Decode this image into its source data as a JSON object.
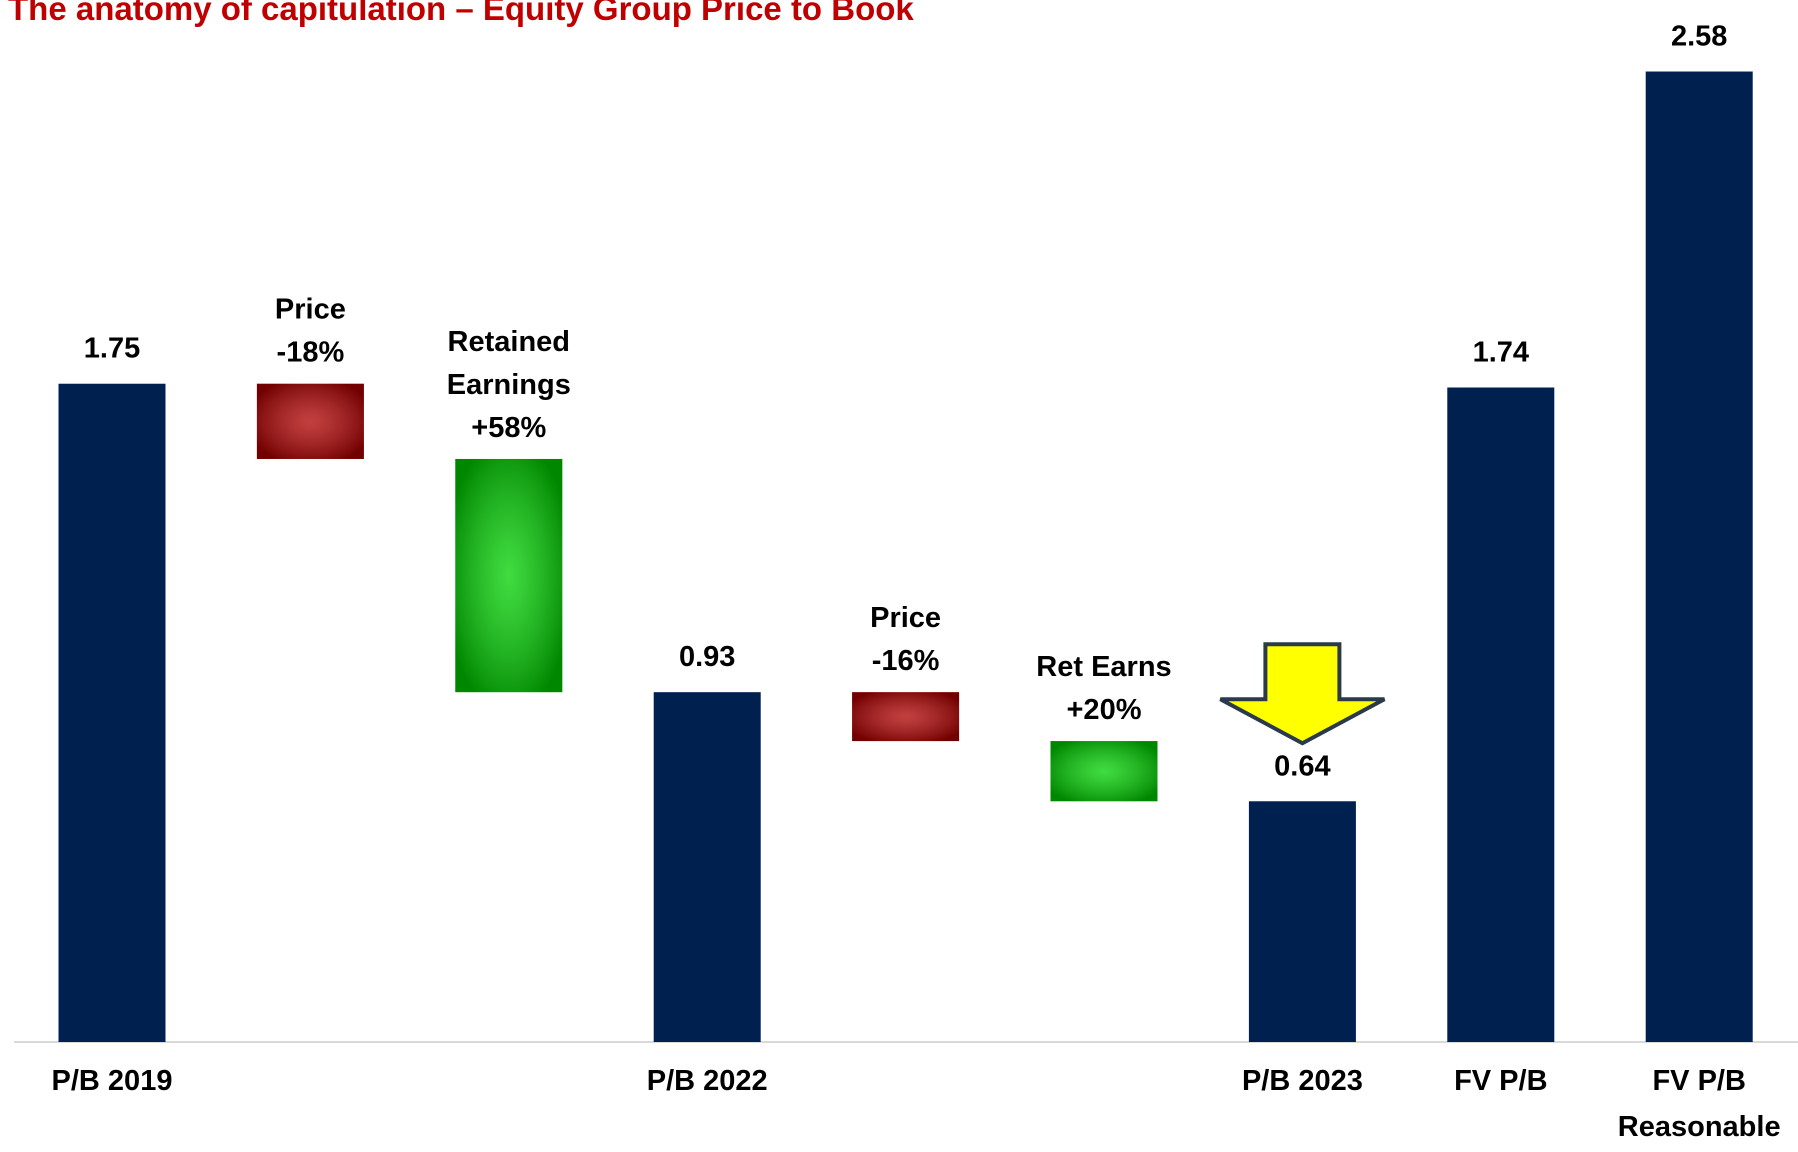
{
  "chart_data": {
    "type": "waterfall",
    "title": "The anatomy of capitulation – Equity Group Price to Book",
    "categories": [
      "P/B 2019",
      null,
      null,
      "P/B 2022",
      null,
      null,
      "P/B 2023",
      "FV P/B",
      "FV P/B\nReasonable"
    ],
    "values": [
      1.75,
      -0.2,
      -0.62,
      0.93,
      -0.13,
      -0.16,
      0.64,
      1.74,
      2.58
    ],
    "measure": [
      "absolute",
      "relative",
      "relative",
      "absolute",
      "relative",
      "relative",
      "absolute",
      "absolute",
      "absolute"
    ],
    "colors": [
      "#002050",
      "#b00000",
      "#00d000",
      "#002050",
      "#b00000",
      "#00d000",
      "#002050",
      "#002050",
      "#002050"
    ],
    "annotations": [
      null,
      "Price\n-18%",
      "Retained\nEarnings\n+58%",
      null,
      "Price\n-16%",
      "Ret Earns\n+20%",
      null,
      null,
      null
    ],
    "ylim": [
      0,
      2.6
    ]
  }
}
